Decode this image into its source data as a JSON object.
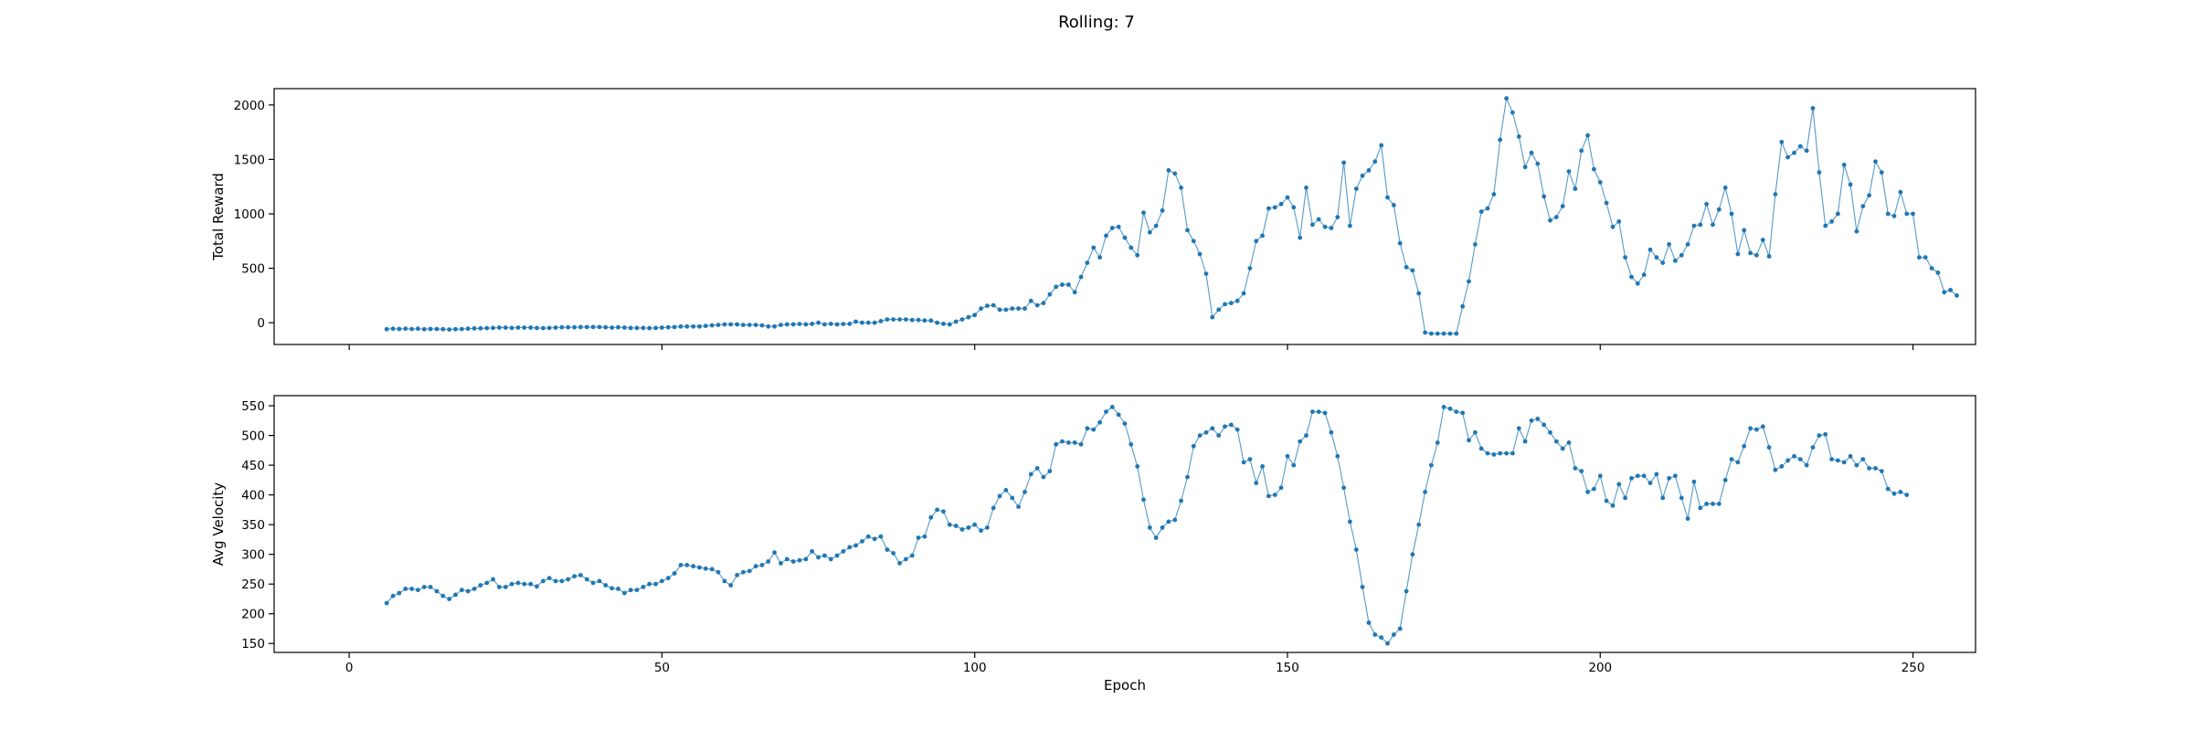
{
  "title": "Rolling: 7",
  "colors": {
    "series": "#1f77b4",
    "axes": "#000000",
    "background": "#ffffff"
  },
  "chart_data": [
    {
      "type": "line",
      "title": "",
      "xlabel": "",
      "ylabel": "Total Reward",
      "xlim": [
        -12,
        260
      ],
      "ylim": [
        -200,
        2150
      ],
      "xticks": [
        0,
        50,
        100,
        150,
        200,
        250
      ],
      "yticks": [
        0,
        500,
        1000,
        1500,
        2000
      ],
      "ytick_labels": [
        "0",
        "500",
        "1000",
        "1500",
        "2000"
      ],
      "x_start": 6,
      "legend": "none",
      "grid": false,
      "markers": true,
      "values": [
        -60,
        -55,
        -57,
        -55,
        -58,
        -55,
        -60,
        -57,
        -58,
        -60,
        -62,
        -60,
        -58,
        -55,
        -52,
        -52,
        -50,
        -48,
        -45,
        -45,
        -48,
        -45,
        -45,
        -45,
        -48,
        -50,
        -48,
        -45,
        -42,
        -42,
        -42,
        -40,
        -40,
        -40,
        -40,
        -42,
        -45,
        -42,
        -45,
        -48,
        -48,
        -48,
        -50,
        -48,
        -45,
        -42,
        -40,
        -35,
        -35,
        -35,
        -35,
        -30,
        -25,
        -20,
        -15,
        -15,
        -15,
        -20,
        -20,
        -20,
        -25,
        -35,
        -35,
        -20,
        -15,
        -15,
        -12,
        -15,
        -10,
        0,
        -15,
        -10,
        -15,
        -12,
        -10,
        10,
        0,
        0,
        0,
        15,
        30,
        30,
        30,
        30,
        25,
        25,
        20,
        20,
        0,
        -10,
        -15,
        10,
        30,
        50,
        70,
        130,
        155,
        160,
        120,
        120,
        130,
        130,
        130,
        200,
        160,
        180,
        260,
        330,
        350,
        350,
        280,
        420,
        550,
        690,
        600,
        800,
        870,
        880,
        780,
        690,
        620,
        1010,
        830,
        890,
        1030,
        1400,
        1370,
        1240,
        850,
        750,
        630,
        450,
        50,
        120,
        170,
        180,
        200,
        270,
        500,
        750,
        800,
        1050,
        1060,
        1090,
        1150,
        1060,
        780,
        1240,
        900,
        950,
        880,
        870,
        970,
        1470,
        890,
        1230,
        1350,
        1400,
        1480,
        1630,
        1150,
        1080,
        730,
        510,
        480,
        270,
        -90,
        -100,
        -100,
        -100,
        -100,
        -100,
        150,
        380,
        720,
        1020,
        1050,
        1180,
        1680,
        2060,
        1930,
        1710,
        1430,
        1560,
        1460,
        1160,
        940,
        970,
        1070,
        1390,
        1230,
        1580,
        1720,
        1410,
        1290,
        1100,
        880,
        930,
        600,
        420,
        360,
        440,
        670,
        600,
        550,
        720,
        570,
        620,
        720,
        890,
        900,
        1090,
        900,
        1040,
        1240,
        1000,
        630,
        850,
        640,
        620,
        760,
        610,
        1180,
        1660,
        1520,
        1560,
        1620,
        1580,
        1970,
        1380,
        890,
        930,
        1000,
        1450,
        1270,
        840,
        1070,
        1170,
        1480,
        1380,
        1000,
        980,
        1200,
        1000,
        1000,
        600,
        600,
        500,
        460,
        280,
        300,
        250
      ]
    },
    {
      "type": "line",
      "title": "",
      "xlabel": "Epoch",
      "ylabel": "Avg Velocity",
      "xlim": [
        -12,
        260
      ],
      "ylim": [
        135,
        567
      ],
      "xticks": [
        0,
        50,
        100,
        150,
        200,
        250
      ],
      "xtick_labels": [
        "0",
        "50",
        "100",
        "150",
        "200",
        "250"
      ],
      "yticks": [
        150,
        200,
        250,
        300,
        350,
        400,
        450,
        500,
        550
      ],
      "ytick_labels": [
        "150",
        "200",
        "250",
        "300",
        "350",
        "400",
        "450",
        "500",
        "550"
      ],
      "x_start": 6,
      "legend": "none",
      "grid": false,
      "markers": true,
      "values": [
        218,
        230,
        235,
        242,
        242,
        240,
        245,
        245,
        238,
        230,
        225,
        232,
        240,
        238,
        242,
        248,
        252,
        258,
        245,
        245,
        250,
        252,
        250,
        250,
        246,
        255,
        260,
        255,
        255,
        258,
        263,
        265,
        258,
        252,
        255,
        248,
        243,
        242,
        235,
        240,
        240,
        245,
        250,
        250,
        255,
        260,
        268,
        282,
        282,
        280,
        278,
        276,
        275,
        270,
        255,
        248,
        265,
        270,
        272,
        280,
        282,
        288,
        303,
        285,
        292,
        288,
        290,
        292,
        305,
        295,
        298,
        292,
        298,
        305,
        312,
        315,
        322,
        330,
        326,
        330,
        308,
        302,
        285,
        292,
        298,
        328,
        330,
        362,
        375,
        372,
        350,
        348,
        342,
        345,
        350,
        340,
        345,
        378,
        398,
        408,
        395,
        380,
        405,
        435,
        445,
        430,
        440,
        485,
        490,
        488,
        488,
        485,
        512,
        510,
        522,
        540,
        548,
        535,
        520,
        485,
        448,
        392,
        345,
        328,
        345,
        355,
        358,
        390,
        430,
        482,
        500,
        505,
        512,
        500,
        515,
        518,
        510,
        455,
        460,
        420,
        448,
        398,
        400,
        412,
        465,
        450,
        490,
        500,
        540,
        540,
        538,
        505,
        465,
        412,
        355,
        308,
        245,
        185,
        165,
        160,
        150,
        165,
        175,
        238,
        300,
        350,
        405,
        450,
        488,
        548,
        545,
        540,
        538,
        492,
        505,
        478,
        470,
        468,
        470,
        470,
        470,
        512,
        490,
        525,
        528,
        518,
        505,
        490,
        478,
        488,
        445,
        440,
        405,
        410,
        432,
        390,
        382,
        418,
        395,
        428,
        432,
        432,
        420,
        435,
        395,
        428,
        432,
        395,
        360,
        422,
        378,
        385,
        385,
        385,
        425,
        460,
        455,
        482,
        512,
        510,
        515,
        480,
        442,
        448,
        458,
        465,
        460,
        450,
        480,
        500,
        502,
        460,
        458,
        455,
        465,
        450,
        460,
        445,
        445,
        440,
        410,
        402,
        405,
        400
      ]
    }
  ]
}
